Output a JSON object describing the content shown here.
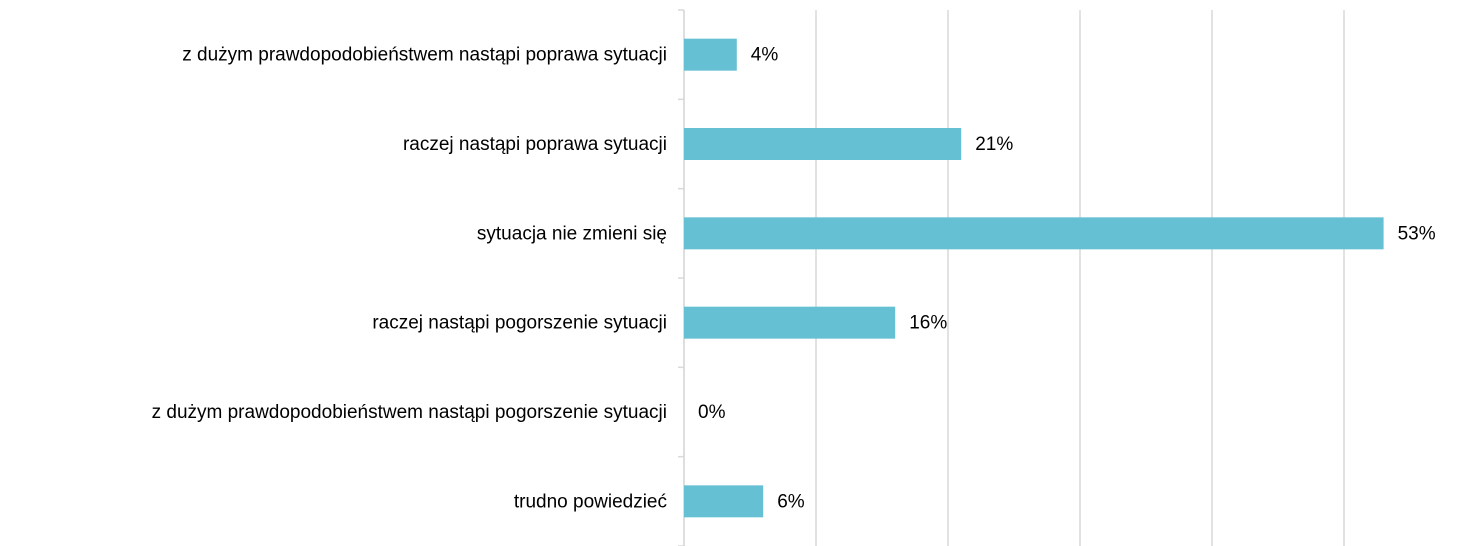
{
  "chart_data": {
    "type": "hbar",
    "categories": [
      "z dużym prawdopodobieństwem nastąpi poprawa sytuacji",
      "raczej nastąpi poprawa sytuacji",
      "sytuacja nie zmieni się",
      "raczej nastąpi pogorszenie sytuacji",
      "z dużym prawdopodobieństwem nastąpi pogorszenie sytuacji",
      "trudno powiedzieć"
    ],
    "values": [
      4,
      21,
      53,
      16,
      0,
      6
    ],
    "value_labels": [
      "4%",
      "21%",
      "53%",
      "16%",
      "0%",
      "6%"
    ],
    "color": "#66c0d4",
    "xlim": [
      0,
      60
    ],
    "xticks": [
      0,
      10,
      20,
      30,
      40,
      50
    ],
    "grid": true
  }
}
